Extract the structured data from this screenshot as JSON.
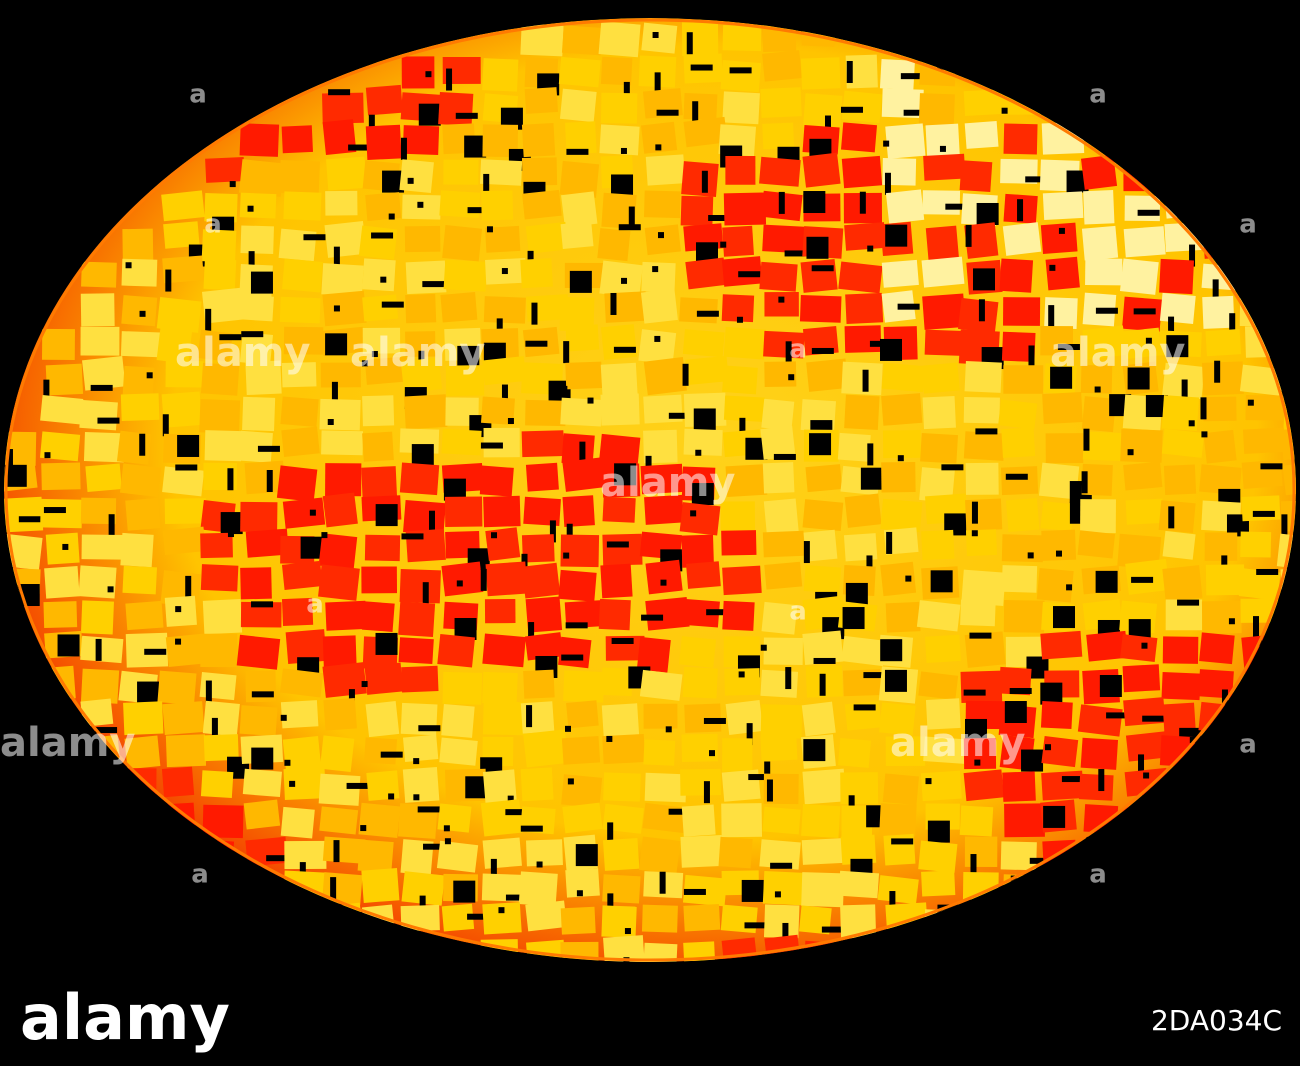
{
  "watermark": {
    "words": [
      "alamy",
      "alamy",
      "alamy",
      "alamy",
      "alamy",
      "alamy"
    ],
    "marks": [
      "a",
      "a",
      "a",
      "a",
      "a",
      "a",
      "a",
      "a",
      "a",
      "a"
    ]
  },
  "footer": {
    "logo": "alamy",
    "image_id": "2DA034C"
  }
}
